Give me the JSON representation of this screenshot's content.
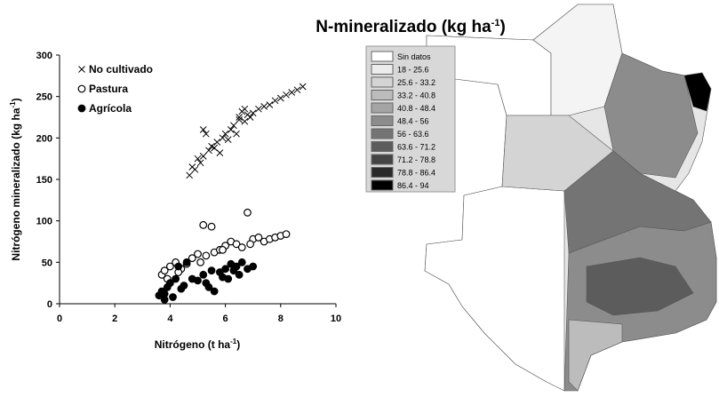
{
  "chart_data": {
    "type": "scatter",
    "title": {
      "text": "N-mineralizado (kg ha",
      "sup": "-1",
      "end": ")"
    },
    "x_label": {
      "text": "Nitrógeno (t ha",
      "sup": "-1",
      "end": ")"
    },
    "y_label": {
      "text": "Nitrógeno mineralizado (kg ha",
      "sup": "-1",
      "end": ")"
    },
    "xlim": [
      0,
      10
    ],
    "xticks": [
      0,
      2,
      4,
      6,
      8,
      10
    ],
    "ylim": [
      0,
      300
    ],
    "yticks": [
      0,
      50,
      100,
      150,
      200,
      250,
      300
    ],
    "grid": false,
    "legend": "top-left",
    "series": [
      {
        "name": "No cultivado",
        "color": "#000000",
        "marker": "x",
        "x": [
          4.7,
          4.8,
          4.9,
          5.0,
          5.1,
          5.2,
          5.3,
          5.4,
          5.5,
          5.6,
          5.7,
          5.8,
          5.9,
          6.0,
          6.1,
          6.2,
          6.3,
          6.4,
          6.5,
          6.6,
          6.7,
          6.8,
          6.9,
          7.0,
          7.2,
          7.4,
          7.6,
          7.8,
          8.0,
          8.2,
          8.4,
          8.6,
          8.8,
          5.2,
          6.5,
          6.7
        ],
        "values": [
          155,
          165,
          162,
          175,
          170,
          178,
          205,
          185,
          190,
          188,
          195,
          182,
          200,
          205,
          198,
          210,
          215,
          205,
          222,
          232,
          220,
          228,
          225,
          230,
          235,
          238,
          240,
          245,
          248,
          252,
          255,
          258,
          262,
          210,
          225,
          235
        ]
      },
      {
        "name": "Pastura",
        "color": "#000000",
        "marker": "open-circle",
        "x": [
          3.7,
          3.8,
          3.9,
          4.0,
          4.2,
          4.4,
          4.6,
          4.8,
          5.0,
          5.2,
          5.3,
          5.5,
          5.6,
          5.8,
          6.0,
          6.2,
          6.4,
          6.6,
          6.8,
          7.0,
          7.2,
          7.4,
          7.6,
          7.8,
          8.0,
          8.2,
          5.1,
          6.9,
          4.3,
          5.9
        ],
        "values": [
          35,
          40,
          30,
          45,
          50,
          42,
          48,
          55,
          60,
          95,
          58,
          93,
          62,
          65,
          70,
          75,
          72,
          68,
          110,
          78,
          80,
          75,
          78,
          80,
          82,
          84,
          50,
          72,
          38,
          65
        ]
      },
      {
        "name": "Agrícola",
        "color": "#000000",
        "marker": "filled-circle",
        "x": [
          3.6,
          3.7,
          3.8,
          3.9,
          4.0,
          4.1,
          4.2,
          4.3,
          4.5,
          4.6,
          4.8,
          5.0,
          5.2,
          5.4,
          5.5,
          5.6,
          5.8,
          6.0,
          6.1,
          6.2,
          6.4,
          6.5,
          6.6,
          6.8,
          7.0,
          5.3,
          4.4,
          5.9,
          6.3,
          3.8
        ],
        "values": [
          10,
          15,
          5,
          20,
          25,
          8,
          30,
          45,
          22,
          50,
          30,
          28,
          35,
          20,
          40,
          15,
          38,
          42,
          30,
          48,
          45,
          35,
          50,
          42,
          45,
          25,
          18,
          32,
          40,
          12
        ]
      }
    ],
    "map_legend": [
      {
        "label": "Sin datos",
        "color": "#ffffff"
      },
      {
        "label": "18 - 25.6",
        "color": "#ececec"
      },
      {
        "label": "25.6 - 33.2",
        "color": "#d4d4d4"
      },
      {
        "label": "33.2 - 40.8",
        "color": "#bcbcbc"
      },
      {
        "label": "40.8 - 48.4",
        "color": "#a4a4a4"
      },
      {
        "label": "48.4 - 56",
        "color": "#8c8c8c"
      },
      {
        "label": "56 - 63.6",
        "color": "#747474"
      },
      {
        "label": "63.6 - 71.2",
        "color": "#5c5c5c"
      },
      {
        "label": "71.2 - 78.8",
        "color": "#444444"
      },
      {
        "label": "78.8 - 86.4",
        "color": "#2a2a2a"
      },
      {
        "label": "86.4 - 94",
        "color": "#000000"
      }
    ]
  }
}
